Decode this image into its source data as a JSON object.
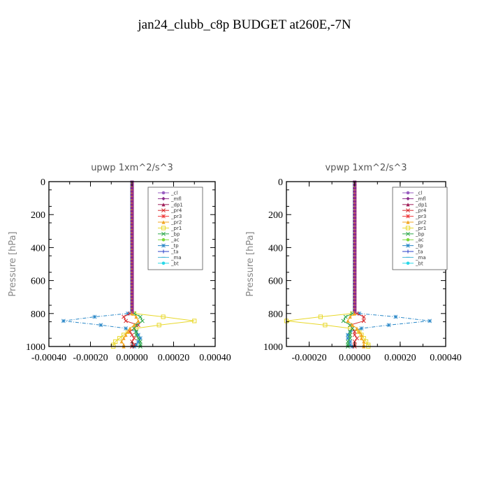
{
  "page_title": "jan24_clubb_c8p  BUDGET at260E,-7N",
  "legend_colors": {
    "_cl": "#9a5fc2",
    "_mfl": "#8a2a8a",
    "_dp1": "#a0205a",
    "_pr4": "#d8282a",
    "_pr3": "#f03a3a",
    "_pr2": "#f2a623",
    "_pr1": "#e8d82a",
    "_bp": "#2ea84a",
    "_ac": "#7ed83a",
    "_tp": "#2a88c8",
    "_ta": "#2a40c8",
    "_ma": "#4ab8d8",
    "_bt": "#2ad8e8"
  },
  "chart_data": [
    {
      "type": "line",
      "title": "upwp   1xm^2/s^3",
      "ylabel": "Pressure [hPa]",
      "xlabel": "",
      "xlim": [
        -0.0004,
        0.0004
      ],
      "ylim": [
        1000,
        0
      ],
      "y_reversed": true,
      "x_ticks": [
        "-0.00040",
        "-0.00020",
        "0.00000",
        "0.00020",
        "0.00040"
      ],
      "y_ticks": [
        "0",
        "200",
        "400",
        "600",
        "800",
        "1000"
      ],
      "legend_position": "top-right",
      "legend": [
        "_cl",
        "_mfl",
        "_dp1",
        "_pr4",
        "_pr3",
        "_pr2",
        "_pr1",
        "_bp",
        "_ac",
        "_tp",
        "_ta",
        "_ma",
        "_bt"
      ],
      "pressure_levels": [
        800,
        820,
        845,
        870,
        890,
        910,
        930,
        950,
        970,
        990,
        1000
      ],
      "series": [
        {
          "name": "_pr1",
          "values": [
            1e-05,
            0.00015,
            0.0003,
            0.00013,
            2e-05,
            -2e-05,
            -4e-05,
            -6e-05,
            -8e-05,
            -9e-05,
            -9e-05
          ]
        },
        {
          "name": "_tp",
          "values": [
            -2e-05,
            -0.00018,
            -0.00033,
            -0.00015,
            -3e-05,
            2e-05,
            3e-05,
            4e-05,
            3e-05,
            2e-05,
            1e-05
          ]
        },
        {
          "name": "_pr4",
          "values": [
            -1e-05,
            -4e-05,
            -3e-05,
            3e-05,
            1e-05,
            -1e-05,
            0.0,
            1e-05,
            0.0,
            1e-05,
            0.0
          ]
        },
        {
          "name": "_bp",
          "values": [
            1e-05,
            4e-05,
            5e-05,
            2e-05,
            1e-05,
            2e-05,
            2e-05,
            3e-05,
            4e-05,
            4e-05,
            4e-05
          ]
        },
        {
          "name": "_pr2",
          "values": [
            0.0,
            2e-05,
            3e-05,
            1e-05,
            -1e-05,
            -2e-05,
            -3e-05,
            -4e-05,
            -5e-05,
            -4e-05,
            -4e-05
          ]
        }
      ]
    },
    {
      "type": "line",
      "title": "vpwp   1xm^2/s^3",
      "ylabel": "Pressure [hPa]",
      "xlabel": "",
      "xlim": [
        -0.0003,
        0.0004
      ],
      "ylim": [
        1000,
        0
      ],
      "y_reversed": true,
      "x_ticks": [
        "-0.00020",
        "0.00000",
        "0.00020",
        "0.00040"
      ],
      "y_ticks": [
        "0",
        "200",
        "400",
        "600",
        "800",
        "1000"
      ],
      "legend_position": "top-right",
      "legend": [
        "_cl",
        "_mfl",
        "_dp1",
        "_pr4",
        "_pr3",
        "_pr2",
        "_pr1",
        "_bp",
        "_ac",
        "_tp",
        "_ta",
        "_ma",
        "_bt"
      ],
      "pressure_levels": [
        800,
        820,
        845,
        870,
        890,
        910,
        930,
        950,
        970,
        990,
        1000
      ],
      "series": [
        {
          "name": "_pr1",
          "values": [
            -1e-05,
            -0.00015,
            -0.0003,
            -0.00013,
            -2e-05,
            2e-05,
            3e-05,
            4e-05,
            5e-05,
            6e-05,
            6e-05
          ]
        },
        {
          "name": "_tp",
          "values": [
            2e-05,
            0.00018,
            0.00033,
            0.00015,
            3e-05,
            -2e-05,
            -3e-05,
            -3e-05,
            -2e-05,
            -2e-05,
            -1e-05
          ]
        },
        {
          "name": "_pr4",
          "values": [
            1e-05,
            4e-05,
            4e-05,
            -2e-05,
            -1e-05,
            0.0,
            0.0,
            1e-05,
            0.0,
            0.0,
            0.0
          ]
        },
        {
          "name": "_bp",
          "values": [
            -1e-05,
            -4e-05,
            -5e-05,
            -2e-05,
            -1e-05,
            -2e-05,
            -2e-05,
            -2e-05,
            -3e-05,
            -3e-05,
            -3e-05
          ]
        },
        {
          "name": "_pr2",
          "values": [
            0.0,
            -2e-05,
            -3e-05,
            -1e-05,
            1e-05,
            2e-05,
            3e-05,
            3e-05,
            4e-05,
            4e-05,
            4e-05
          ]
        }
      ]
    }
  ]
}
